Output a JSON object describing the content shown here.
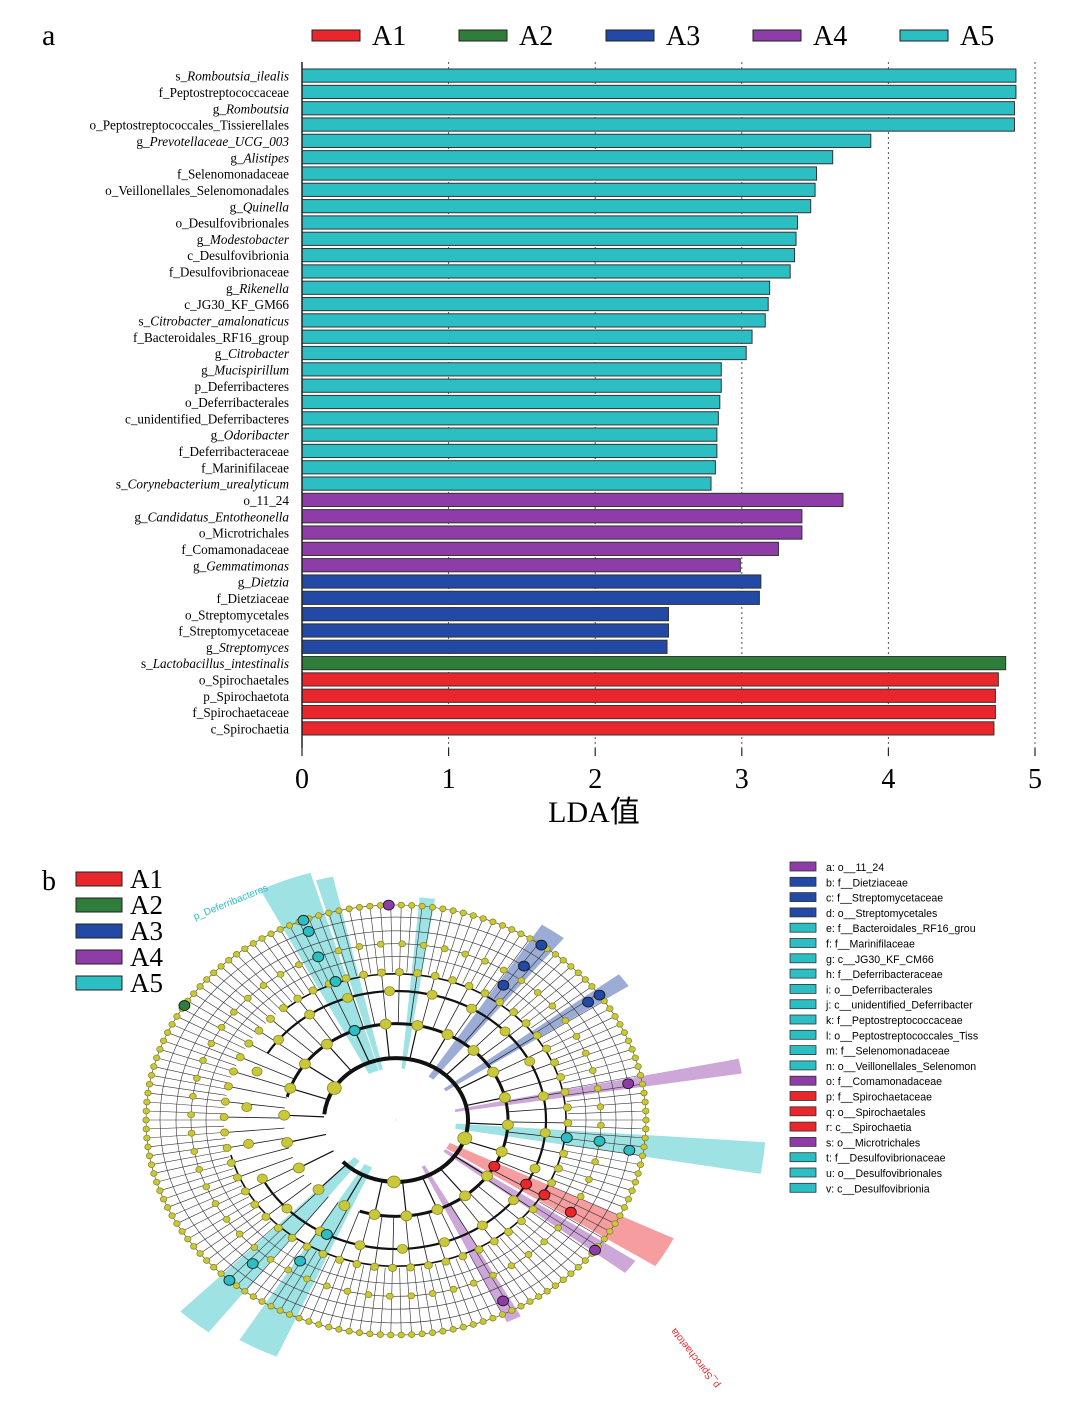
{
  "colors": {
    "A1": "#e8262b",
    "A2": "#2e7d3a",
    "A3": "#2249a6",
    "A4": "#8e3ca8",
    "A5": "#2bbfc4",
    "node": "#c9c83a",
    "node_stroke": "#8c8a20"
  },
  "chart_data": [
    {
      "type": "bar",
      "panel_label": "a",
      "orientation": "horizontal",
      "xlabel": "LDA值",
      "xlim": [
        0,
        5
      ],
      "xticks": [
        "0",
        "1",
        "2",
        "3",
        "4",
        "5"
      ],
      "grid": "vertical dotted",
      "legend": [
        "A1",
        "A2",
        "A3",
        "A4",
        "A5"
      ],
      "legend_position": "top",
      "bars": [
        {
          "label": "s_Romboutsia_ilealis",
          "value": 4.87,
          "group": "A5"
        },
        {
          "label": "f_Peptostreptococcaceae",
          "value": 4.87,
          "group": "A5"
        },
        {
          "label": "g_Romboutsia",
          "value": 4.86,
          "group": "A5"
        },
        {
          "label": "o_Peptostreptococcales_Tissierellales",
          "value": 4.86,
          "group": "A5"
        },
        {
          "label": "g_Prevotellaceae_UCG_003",
          "value": 3.88,
          "group": "A5"
        },
        {
          "label": "g_Alistipes",
          "value": 3.62,
          "group": "A5"
        },
        {
          "label": "f_Selenomonadaceae",
          "value": 3.51,
          "group": "A5"
        },
        {
          "label": "o_Veillonellales_Selenomonadales",
          "value": 3.5,
          "group": "A5"
        },
        {
          "label": "g_Quinella",
          "value": 3.47,
          "group": "A5"
        },
        {
          "label": "o_Desulfovibrionales",
          "value": 3.38,
          "group": "A5"
        },
        {
          "label": "g_Modestobacter",
          "value": 3.37,
          "group": "A5"
        },
        {
          "label": "c_Desulfovibrionia",
          "value": 3.36,
          "group": "A5"
        },
        {
          "label": "f_Desulfovibrionaceae",
          "value": 3.33,
          "group": "A5"
        },
        {
          "label": "g_Rikenella",
          "value": 3.19,
          "group": "A5"
        },
        {
          "label": "c_JG30_KF_GM66",
          "value": 3.18,
          "group": "A5"
        },
        {
          "label": "s_Citrobacter_amalonaticus",
          "value": 3.16,
          "group": "A5"
        },
        {
          "label": "f_Bacteroidales_RF16_group",
          "value": 3.07,
          "group": "A5"
        },
        {
          "label": "g_Citrobacter",
          "value": 3.03,
          "group": "A5"
        },
        {
          "label": "g_Mucispirillum",
          "value": 2.86,
          "group": "A5"
        },
        {
          "label": "p_Deferribacteres",
          "value": 2.86,
          "group": "A5"
        },
        {
          "label": "o_Deferribacterales",
          "value": 2.85,
          "group": "A5"
        },
        {
          "label": "c_unidentified_Deferribacteres",
          "value": 2.84,
          "group": "A5"
        },
        {
          "label": "g_Odoribacter",
          "value": 2.83,
          "group": "A5"
        },
        {
          "label": "f_Deferribacteraceae",
          "value": 2.83,
          "group": "A5"
        },
        {
          "label": "f_Marinifilaceae",
          "value": 2.82,
          "group": "A5"
        },
        {
          "label": "s_Corynebacterium_urealyticum",
          "value": 2.79,
          "group": "A5"
        },
        {
          "label": "o_11_24",
          "value": 3.69,
          "group": "A4"
        },
        {
          "label": "g_Candidatus_Entotheonella",
          "value": 3.41,
          "group": "A4"
        },
        {
          "label": "o_Microtrichales",
          "value": 3.41,
          "group": "A4"
        },
        {
          "label": "f_Comamonadaceae",
          "value": 3.25,
          "group": "A4"
        },
        {
          "label": "g_Gemmatimonas",
          "value": 2.99,
          "group": "A4"
        },
        {
          "label": "g_Dietzia",
          "value": 3.13,
          "group": "A3"
        },
        {
          "label": "f_Dietziaceae",
          "value": 3.12,
          "group": "A3"
        },
        {
          "label": "o_Streptomycetales",
          "value": 2.5,
          "group": "A3"
        },
        {
          "label": "f_Streptomycetaceae",
          "value": 2.5,
          "group": "A3"
        },
        {
          "label": "g_Streptomyces",
          "value": 2.49,
          "group": "A3"
        },
        {
          "label": "s_Lactobacillus_intestinalis",
          "value": 4.8,
          "group": "A2"
        },
        {
          "label": "o_Spirochaetales",
          "value": 4.75,
          "group": "A1"
        },
        {
          "label": "p_Spirochaetota",
          "value": 4.73,
          "group": "A1"
        },
        {
          "label": "f_Spirochaetaceae",
          "value": 4.73,
          "group": "A1"
        },
        {
          "label": "c_Spirochaetia",
          "value": 4.72,
          "group": "A1"
        }
      ]
    },
    {
      "type": "cladogram",
      "panel_label": "b",
      "legend": [
        "A1",
        "A2",
        "A3",
        "A4",
        "A5"
      ],
      "legend_position": "top-left",
      "highlight_labels": [
        "p_Deferribacteres",
        "p_Spirochaetota"
      ],
      "key": [
        {
          "text": "a: o__11_24",
          "group": "A4"
        },
        {
          "text": "b: f__Dietziaceae",
          "group": "A3"
        },
        {
          "text": "c: f__Streptomycetaceae",
          "group": "A3"
        },
        {
          "text": "d: o__Streptomycetales",
          "group": "A3"
        },
        {
          "text": "e: f__Bacteroidales_RF16_grou",
          "group": "A5"
        },
        {
          "text": "f: f__Marinifilaceae",
          "group": "A5"
        },
        {
          "text": "g: c__JG30_KF_CM66",
          "group": "A5"
        },
        {
          "text": "h: f__Deferribacteraceae",
          "group": "A5"
        },
        {
          "text": "i: o__Deferribacterales",
          "group": "A5"
        },
        {
          "text": "j: c__unidentified_Deferribacter",
          "group": "A5"
        },
        {
          "text": "k: f__Peptostreptococcaceae",
          "group": "A5"
        },
        {
          "text": "l: o__Peptostreptococcales_Tiss",
          "group": "A5"
        },
        {
          "text": "m: f__Selenomonadaceae",
          "group": "A5"
        },
        {
          "text": "n: o__Veillonellales_Selenomon",
          "group": "A5"
        },
        {
          "text": "o: f__Comamonadaceae",
          "group": "A4"
        },
        {
          "text": "p: f__Spirochaetaceae",
          "group": "A1"
        },
        {
          "text": "q: o__Spirochaetales",
          "group": "A1"
        },
        {
          "text": "r: c__Spirochaetia",
          "group": "A1"
        },
        {
          "text": "s: o__Microtrichales",
          "group": "A4"
        },
        {
          "text": "t: f__Desulfovibrionaceae",
          "group": "A5"
        },
        {
          "text": "u: o__Desulfovibrionales",
          "group": "A5"
        },
        {
          "text": "v: c__Desulfovibrionia",
          "group": "A5"
        }
      ]
    }
  ]
}
